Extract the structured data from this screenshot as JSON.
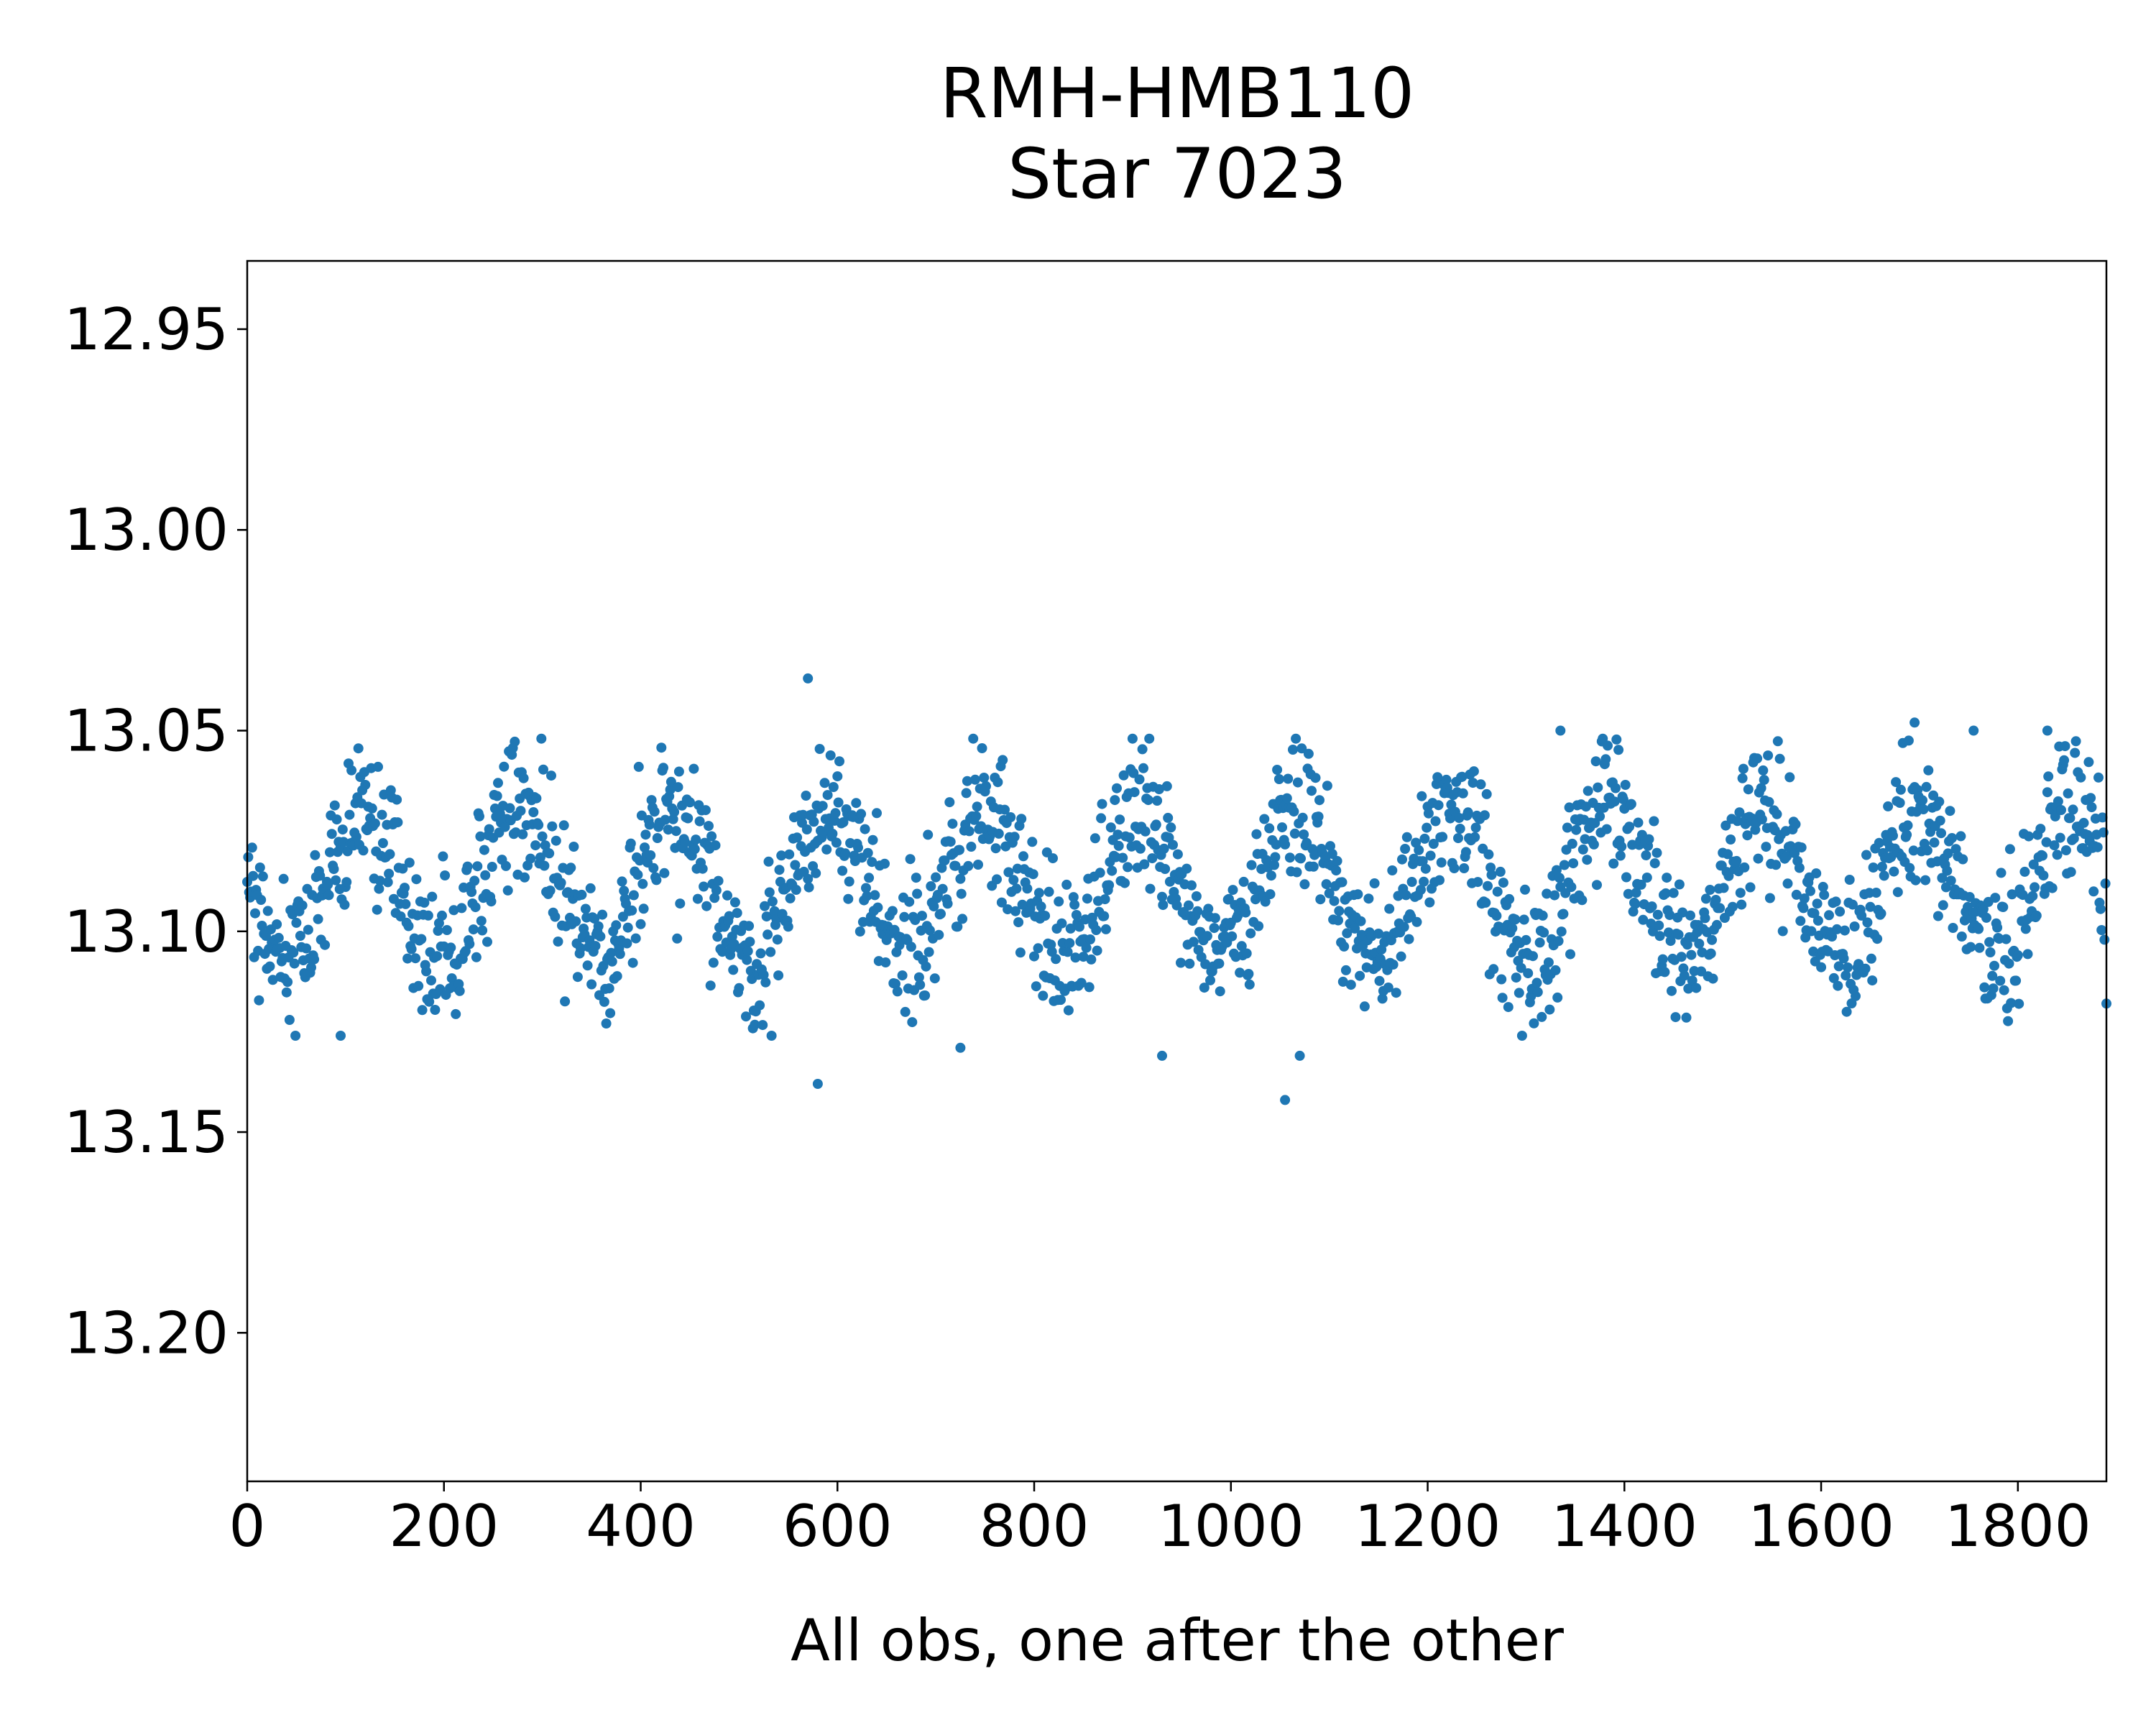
{
  "chart_data": {
    "type": "scatter",
    "title": "RMH-HMB110",
    "subtitle": "Star 7023",
    "xlabel": "All obs, one after the other",
    "ylabel": "",
    "xlim": [
      0,
      1890
    ],
    "ylim": [
      13.237,
      12.933
    ],
    "y_inverted": true,
    "grid": false,
    "x_ticks": [
      0,
      200,
      400,
      600,
      800,
      1000,
      1200,
      1400,
      1600,
      1800
    ],
    "x_tick_labels": [
      "0",
      "200",
      "400",
      "600",
      "800",
      "1000",
      "1200",
      "1400",
      "1600",
      "1800"
    ],
    "y_ticks": [
      12.95,
      13.0,
      13.05,
      13.1,
      13.15,
      13.2
    ],
    "y_tick_labels": [
      "12.95",
      "13.00",
      "13.05",
      "13.10",
      "13.15",
      "13.20"
    ],
    "marker_color": "#1f77b4",
    "n_points": 1890,
    "series": [
      {
        "mean": 13.088,
        "scatter_amplitude": 0.012,
        "cycle_length_obs": 158,
        "cycle_amplitude": 0.018,
        "highlighted_points": [
          {
            "x": 570,
            "y": 13.037
          },
          {
            "x": 580,
            "y": 13.138
          },
          {
            "x": 1055,
            "y": 13.142
          },
          {
            "x": 930,
            "y": 13.131
          },
          {
            "x": 725,
            "y": 13.129
          },
          {
            "x": 95,
            "y": 13.126
          },
          {
            "x": 1070,
            "y": 13.131
          },
          {
            "x": 1695,
            "y": 13.048
          },
          {
            "x": 1755,
            "y": 13.05
          },
          {
            "x": 1830,
            "y": 13.05
          },
          {
            "x": 1335,
            "y": 13.05
          },
          {
            "x": 1890,
            "y": 13.118
          }
        ]
      }
    ]
  }
}
